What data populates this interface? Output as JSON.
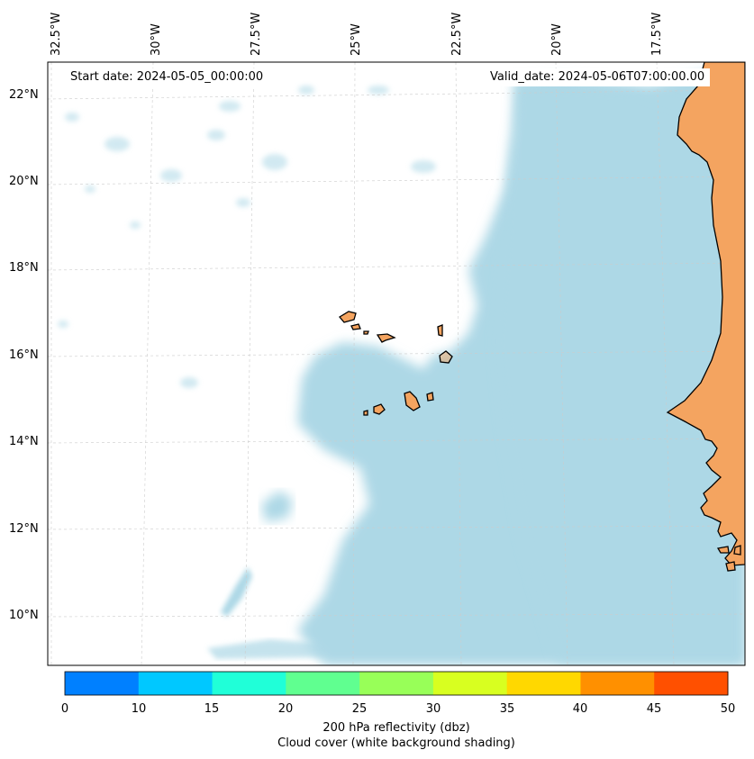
{
  "map": {
    "lon_labels": [
      "32.5°W",
      "30°W",
      "27.5°W",
      "25°W",
      "22.5°W",
      "20°W",
      "17.5°W"
    ],
    "lat_labels": [
      "22°N",
      "20°N",
      "18°N",
      "16°N",
      "14°N",
      "12°N",
      "10°N"
    ],
    "start_date": "Start date: 2024-05-05_00:00:00",
    "valid_date": "Valid_date: 2024-05-06T07:00:00.00",
    "colors": {
      "cloud": "#add8e6",
      "land": "#f4a460",
      "coast": "#000000",
      "grid": "#cccccc"
    }
  },
  "colorbar": {
    "ticks": [
      "0",
      "10",
      "15",
      "20",
      "25",
      "30",
      "35",
      "40",
      "45",
      "50"
    ],
    "colors": [
      "#0080ff",
      "#00c8ff",
      "#20ffd8",
      "#60ff90",
      "#98ff58",
      "#d8ff20",
      "#ffd800",
      "#ff9000",
      "#ff5000"
    ],
    "label": "200 hPa reflectivity (dbz)",
    "sublabel": "Cloud cover (white background shading)"
  }
}
